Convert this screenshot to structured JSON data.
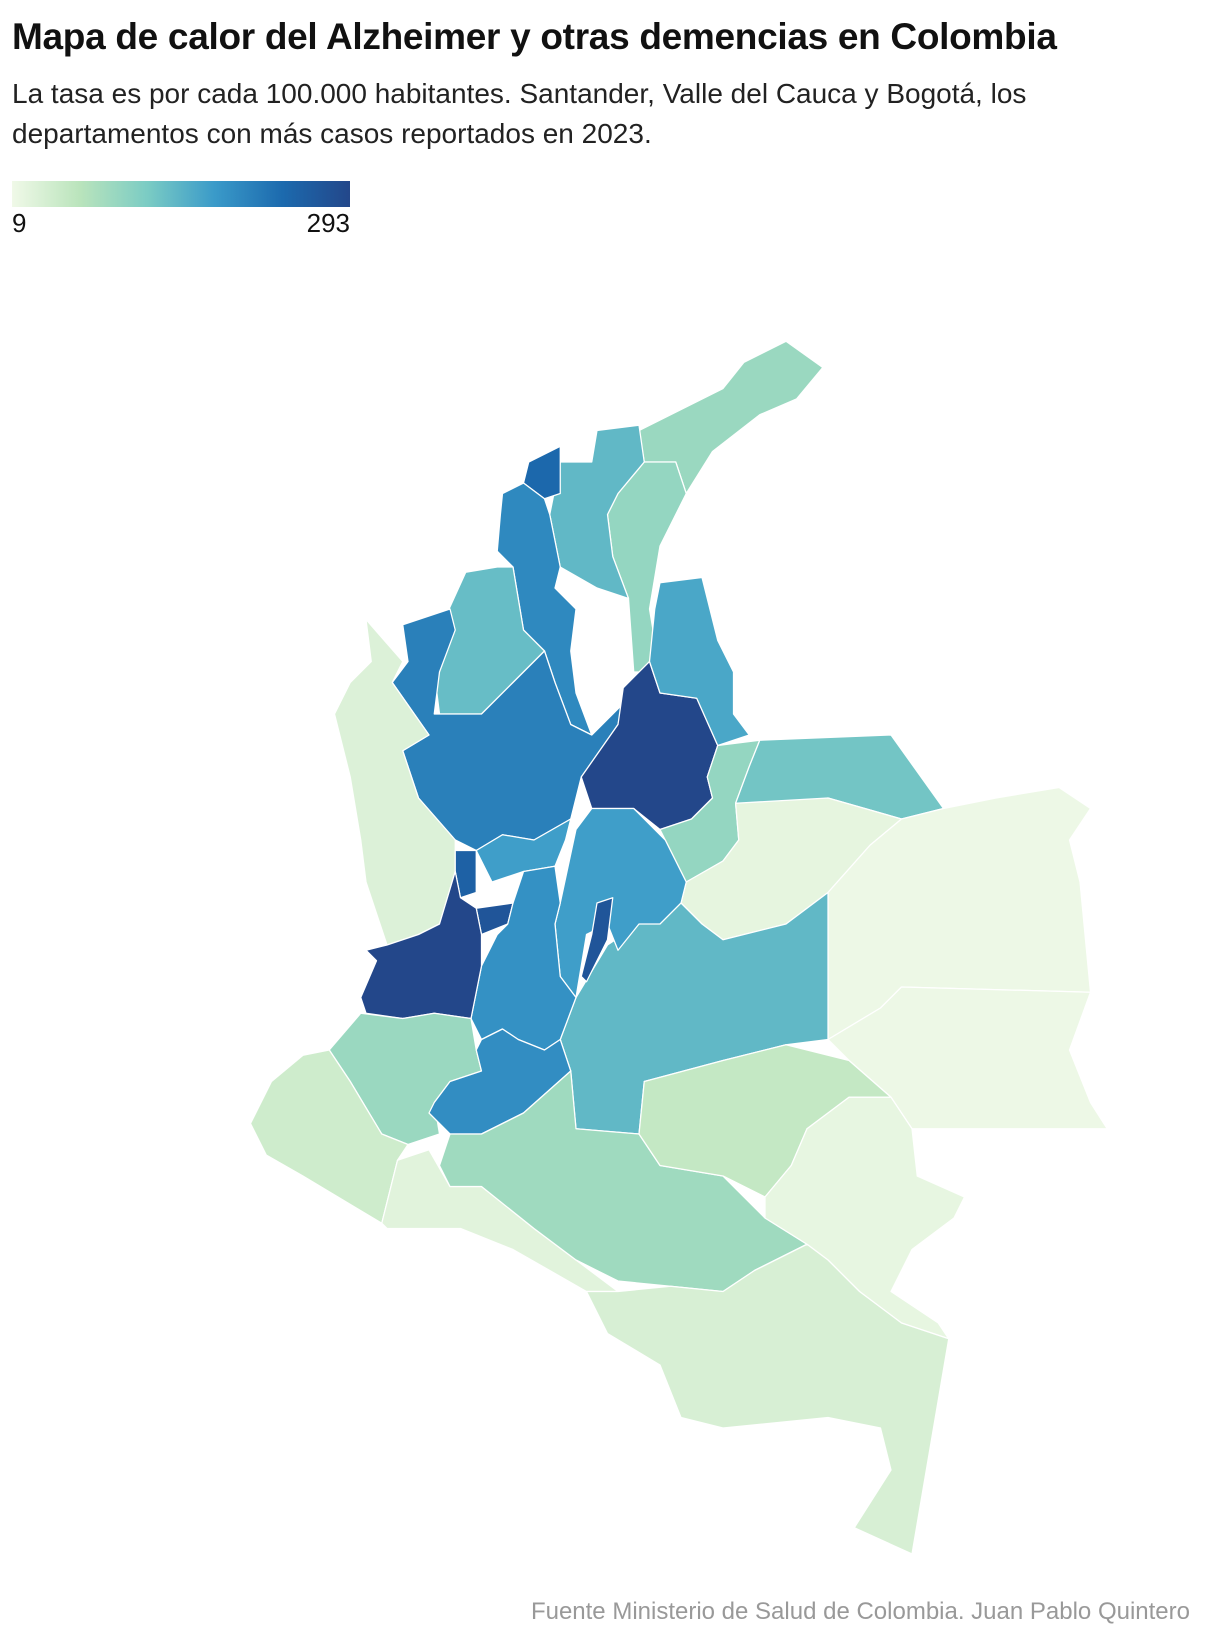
{
  "chart_data": {
    "type": "choropleth",
    "title": "Mapa de calor del Alzheimer y otras demencias en Colombia",
    "subtitle": "La tasa es por cada 100.000 habitantes. Santander, Valle del Cauca y Bogotá, los departamentos con más casos reportados en 2023.",
    "source": "Fuente Ministerio de Salud de Colombia. Juan Pablo Quintero",
    "clim": [
      9,
      293
    ],
    "cticks": [
      9,
      293
    ],
    "colors": [
      "#f0f9e8",
      "#bae4bc",
      "#7bccc4",
      "#3a9ac9",
      "#1c6aae",
      "#23478a"
    ],
    "values": [
      95,
      100,
      145,
      240,
      200,
      140,
      210,
      30,
      293,
      165,
      100,
      130,
      20,
      12,
      12,
      145,
      175,
      270,
      175,
      250,
      270,
      190,
      293,
      95,
      195,
      45,
      25,
      90,
      55,
      18,
      35
    ]
  }
}
